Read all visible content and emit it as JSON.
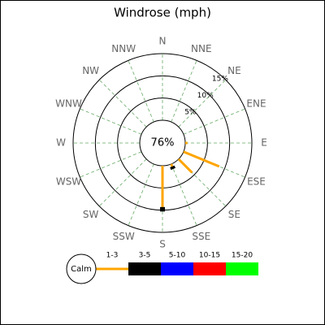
{
  "chart_data": {
    "type": "windrose",
    "title": "Windrose (mph)",
    "directions": [
      "N",
      "NNE",
      "NE",
      "ENE",
      "E",
      "ESE",
      "SE",
      "SSE",
      "S",
      "SSW",
      "SW",
      "WSW",
      "W",
      "WNW",
      "NW",
      "NNW"
    ],
    "calm_label": "Calm",
    "calm_value": 76,
    "calm_value_label": "76%",
    "rlim": [
      0,
      15
    ],
    "rticks": [
      {
        "value": 5,
        "label": "5%"
      },
      {
        "value": 10,
        "label": "10%"
      },
      {
        "value": 15,
        "label": "15%"
      }
    ],
    "grid": true,
    "series": [
      {
        "name": "1-3",
        "color": "#ffa500",
        "values": [
          0,
          0,
          0,
          0,
          0.5,
          8.7,
          4.3,
          0.6,
          9.3,
          0,
          0,
          0,
          0,
          0,
          0,
          0
        ]
      },
      {
        "name": "3-5",
        "color": "#000000",
        "values": [
          0,
          0,
          0,
          0,
          0,
          0,
          0,
          0.6,
          1.0,
          0,
          0,
          0,
          0,
          0,
          0,
          0
        ]
      },
      {
        "name": "5-10",
        "color": "#0000ff",
        "values": [
          0,
          0,
          0,
          0,
          0,
          0,
          0,
          0,
          0,
          0,
          0,
          0,
          0,
          0,
          0,
          0
        ]
      },
      {
        "name": "10-15",
        "color": "#ff0000",
        "values": [
          0,
          0,
          0,
          0,
          0,
          0,
          0,
          0,
          0,
          0,
          0,
          0,
          0,
          0,
          0,
          0
        ]
      },
      {
        "name": "15-20",
        "color": "#00ff00",
        "values": [
          0,
          0,
          0,
          0,
          0,
          0,
          0,
          0,
          0,
          0,
          0,
          0,
          0,
          0,
          0,
          0
        ]
      }
    ]
  }
}
